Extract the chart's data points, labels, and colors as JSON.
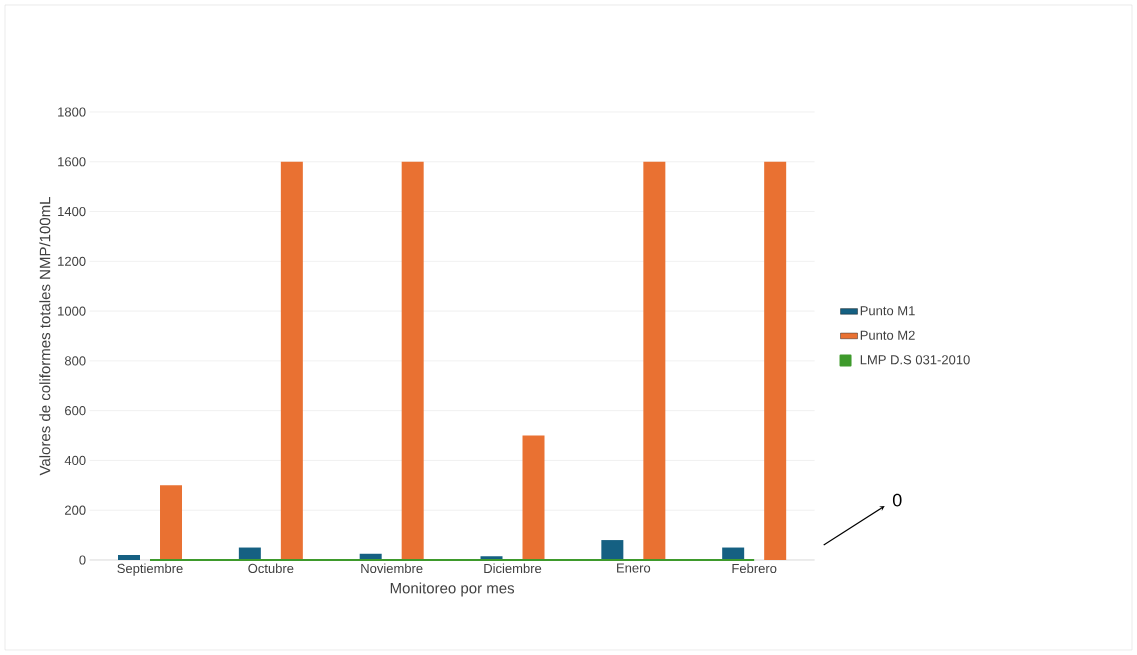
{
  "chart_data": {
    "type": "bar",
    "xlabel": "Monitoreo por mes",
    "ylabel": "Valores de coliformes totales NMP/100mL",
    "categories": [
      "Septiembre",
      "Octubre",
      "Noviembre",
      "Diciembre",
      "Enero",
      "Febrero"
    ],
    "series": [
      {
        "name": "Punto M1",
        "color": "#156082",
        "values": [
          20,
          50,
          25,
          15,
          80,
          50
        ]
      },
      {
        "name": "Punto M2",
        "color": "#e97132",
        "values": [
          300,
          1600,
          1600,
          500,
          1600,
          1600
        ]
      },
      {
        "name": "LMP D.S 031-2010",
        "color": "#3e9a2c",
        "type": "line",
        "values": [
          0,
          0,
          0,
          0,
          0,
          0
        ]
      }
    ],
    "ylim": [
      0,
      1800
    ],
    "yticks": [
      0,
      200,
      400,
      600,
      800,
      1000,
      1200,
      1400,
      1600,
      1800
    ],
    "grid": "y",
    "legend": "right",
    "annotations": [
      "0"
    ]
  }
}
